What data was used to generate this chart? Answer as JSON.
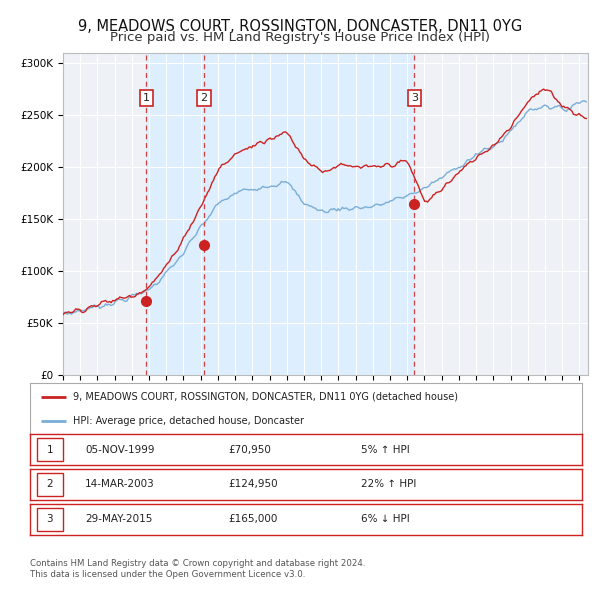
{
  "title": "9, MEADOWS COURT, ROSSINGTON, DONCASTER, DN11 0YG",
  "subtitle": "Price paid vs. HM Land Registry's House Price Index (HPI)",
  "title_fontsize": 10.5,
  "subtitle_fontsize": 9.5,
  "ylabel_ticks": [
    "£0",
    "£50K",
    "£100K",
    "£150K",
    "£200K",
    "£250K",
    "£300K"
  ],
  "ytick_values": [
    0,
    50000,
    100000,
    150000,
    200000,
    250000,
    300000
  ],
  "ylim": [
    0,
    310000
  ],
  "xlim_start": 1995.0,
  "xlim_end": 2025.5,
  "sale_dates": [
    1999.846,
    2003.2,
    2015.41
  ],
  "sale_prices": [
    70950,
    124950,
    165000
  ],
  "sale_labels": [
    "1",
    "2",
    "3"
  ],
  "shaded_region": [
    1999.846,
    2015.41
  ],
  "shade_color": "#ddeeff",
  "red_line_color": "#cc2222",
  "blue_line_color": "#7aaed6",
  "dot_color": "#cc2222",
  "dashed_color": "#cc4444",
  "legend_red_label": "9, MEADOWS COURT, ROSSINGTON, DONCASTER, DN11 0YG (detached house)",
  "legend_blue_label": "HPI: Average price, detached house, Doncaster",
  "table_rows": [
    [
      "1",
      "05-NOV-1999",
      "£70,950",
      "5% ↑ HPI"
    ],
    [
      "2",
      "14-MAR-2003",
      "£124,950",
      "22% ↑ HPI"
    ],
    [
      "3",
      "29-MAY-2015",
      "£165,000",
      "6% ↓ HPI"
    ]
  ],
  "footnote": "Contains HM Land Registry data © Crown copyright and database right 2024.\nThis data is licensed under the Open Government Licence v3.0.",
  "bg_color": "#ffffff",
  "plot_bg_color": "#eef2f7",
  "grid_color": "#ffffff"
}
